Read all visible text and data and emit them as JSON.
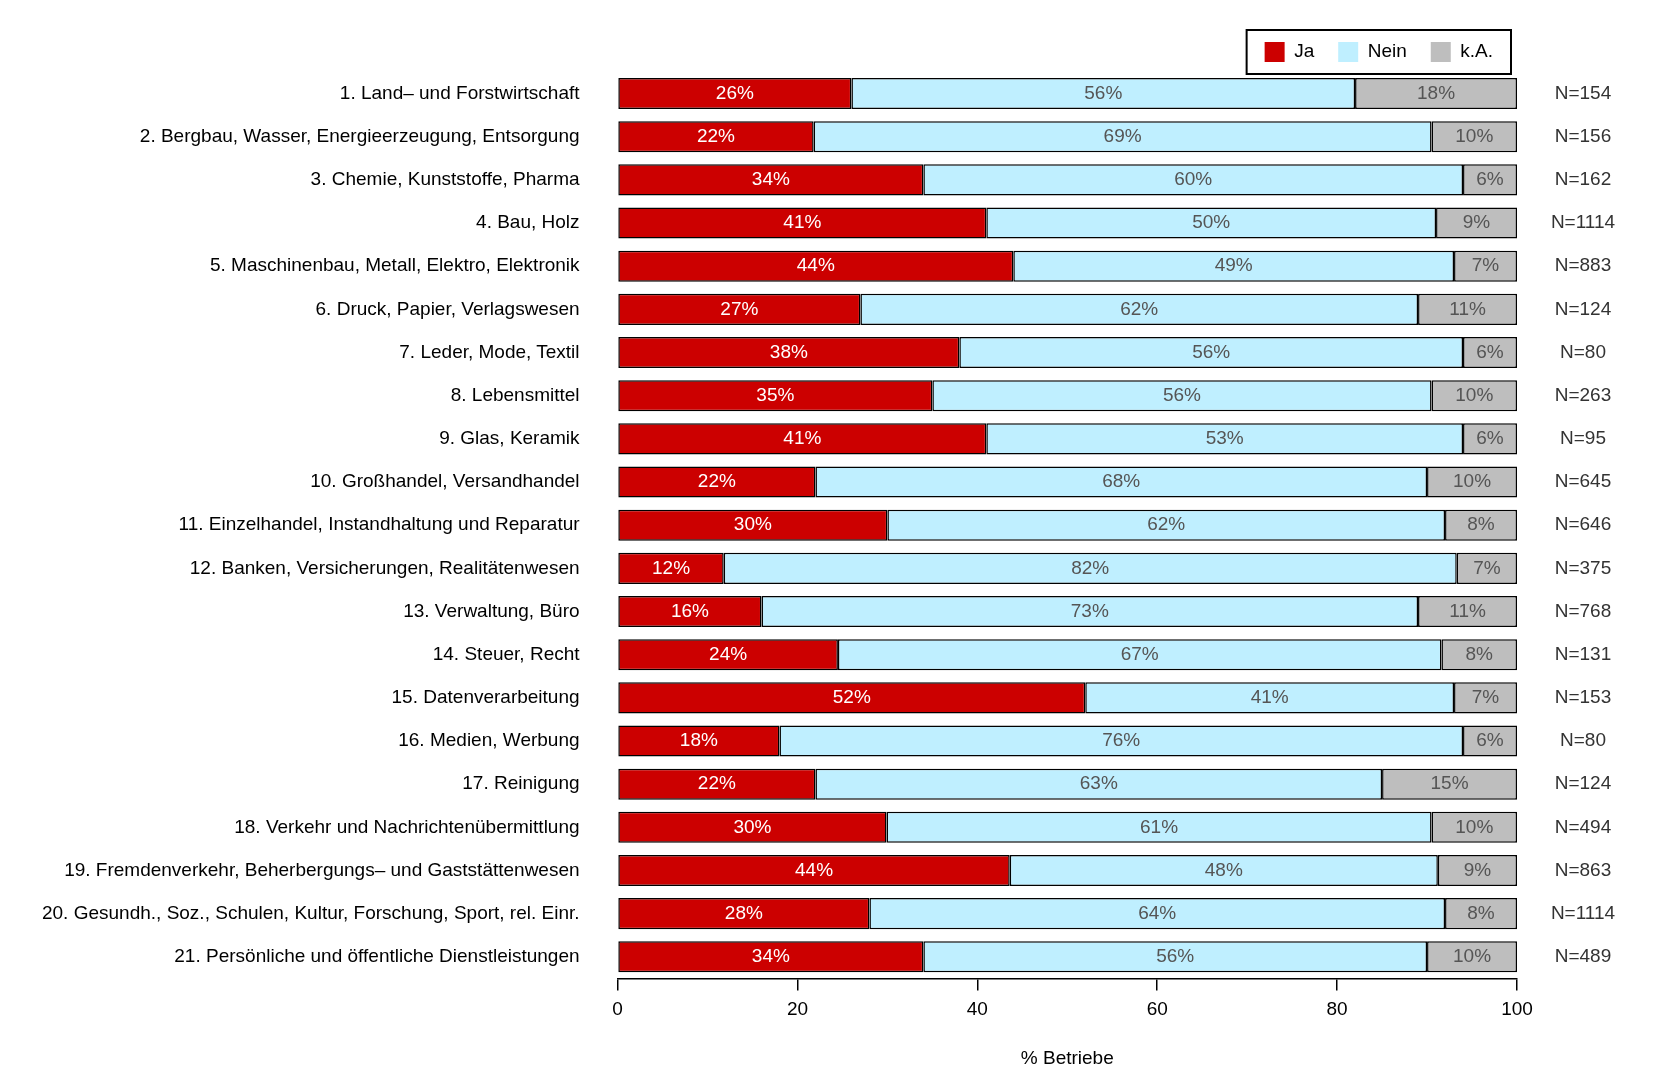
{
  "chart_data": {
    "type": "bar",
    "orientation": "horizontal",
    "stacked": true,
    "xlabel": "% Betriebe",
    "legend": "top right",
    "categories": [
      "1. Land– und Forstwirtschaft",
      "2. Bergbau, Wasser, Energieerzeugung, Entsorgung",
      "3. Chemie, Kunststoffe, Pharma",
      "4. Bau, Holz",
      "5. Maschinenbau, Metall, Elektro, Elektronik",
      "6. Druck, Papier, Verlagswesen",
      "7. Leder, Mode, Textil",
      "8. Lebensmittel",
      "9. Glas, Keramik",
      "10. Großhandel, Versandhandel",
      "11. Einzelhandel, Instandhaltung und Reparatur",
      "12. Banken, Versicherungen, Realitätenwesen",
      "13. Verwaltung, Büro",
      "14. Steuer, Recht",
      "15. Datenverarbeitung",
      "16. Medien, Werbung",
      "17. Reinigung",
      "18. Verkehr und Nachrichtenübermittlung",
      "19. Fremdenverkehr, Beherbergungs– und Gaststättenwesen",
      "20. Gesundh., Soz., Schulen, Kultur, Forschung, Sport, rel. Einr.",
      "21. Persönliche und öffentliche Dienstleistungen"
    ],
    "series": [
      {
        "name": "Ja",
        "color": "#cc0000",
        "values": [
          26,
          21.8,
          34,
          41,
          44,
          27,
          38,
          35,
          41,
          22,
          30,
          11.8,
          16,
          24.5,
          52,
          18,
          22,
          29.9,
          43.6,
          28,
          34
        ],
        "value_labels": [
          "26%",
          "22%",
          "34%",
          "41%",
          "44%",
          "27%",
          "38%",
          "35%",
          "41%",
          "22%",
          "30%",
          "12%",
          "16%",
          "24%",
          "52%",
          "18%",
          "22%",
          "30%",
          "44%",
          "28%",
          "34%"
        ]
      },
      {
        "name": "Nein",
        "color": "#bfefff",
        "values": [
          56,
          68.7,
          60,
          50,
          49,
          62,
          56,
          55.5,
          53,
          68,
          62,
          81.5,
          73,
          67.1,
          41,
          76,
          63,
          60.6,
          47.6,
          64,
          56
        ],
        "value_labels": [
          "56%",
          "69%",
          "60%",
          "50%",
          "49%",
          "62%",
          "56%",
          "56%",
          "53%",
          "68%",
          "62%",
          "82%",
          "73%",
          "67%",
          "41%",
          "76%",
          "63%",
          "61%",
          "48%",
          "64%",
          "56%"
        ]
      },
      {
        "name": "k.A.",
        "color": "#bebebe",
        "values": [
          18,
          9.5,
          6,
          9,
          7,
          11,
          6,
          9.5,
          6,
          10,
          8,
          6.7,
          11,
          8.4,
          7,
          6,
          15,
          9.5,
          8.8,
          8,
          10
        ],
        "value_labels": [
          "18%",
          "10%",
          "6%",
          "9%",
          "7%",
          "11%",
          "6%",
          "10%",
          "6%",
          "10%",
          "8%",
          "7%",
          "11%",
          "8%",
          "7%",
          "6%",
          "15%",
          "10%",
          "9%",
          "8%",
          "10%"
        ]
      }
    ],
    "xlim": [
      0,
      100
    ],
    "xticks": [
      0,
      20,
      40,
      60,
      80,
      100
    ],
    "grid": false,
    "annotations": [
      "N=154",
      "N=156",
      "N=162",
      "N=1114",
      "N=883",
      "N=124",
      "N=80",
      "N=263",
      "N=95",
      "N=645",
      "N=646",
      "N=375",
      "N=768",
      "N=131",
      "N=153",
      "N=80",
      "N=124",
      "N=494",
      "N=863",
      "N=1114",
      "N=489"
    ]
  }
}
